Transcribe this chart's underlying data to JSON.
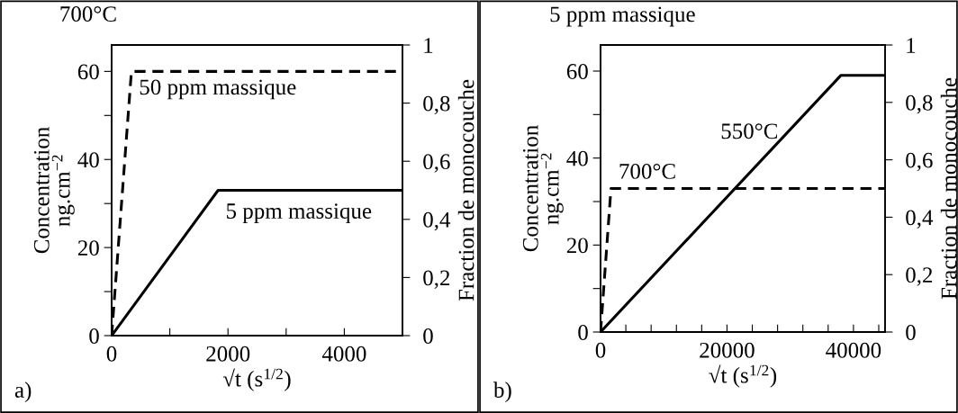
{
  "chart_data": [
    {
      "type": "line",
      "title": "700°C",
      "xlabel": "√t (s$^{1/2}$)",
      "ylabel": "Concentration\nng.cm$^{−2}$",
      "y2label": "Fraction de monocouche",
      "xlim": [
        0,
        5000
      ],
      "xticks": [
        0,
        {
          "value": 1000,
          "label": null
        },
        2000,
        {
          "value": 3000,
          "label": null
        },
        4000
      ],
      "ylim": [
        0,
        66
      ],
      "yticks": [
        0,
        {
          "value": 10,
          "label": null
        },
        20,
        {
          "value": 30,
          "label": null
        },
        40,
        {
          "value": 50,
          "label": null
        },
        60
      ],
      "y2lim": [
        0,
        1
      ],
      "y2ticks": [
        0,
        {
          "value": 0.2,
          "label": "0,2"
        },
        {
          "value": 0.4,
          "label": "0,4"
        },
        {
          "value": 0.6,
          "label": "0,6"
        },
        {
          "value": 0.8,
          "label": "0,8"
        },
        1
      ],
      "grid": false,
      "legend": false,
      "series": [
        {
          "name": "50 ppm massique",
          "color": "#000000",
          "line_style": "dashed",
          "x": [
            0,
            340,
            5000
          ],
          "values": [
            0,
            60,
            60
          ]
        },
        {
          "name": "5 ppm massique",
          "color": "#000000",
          "line_style": "solid",
          "x": [
            0,
            1830,
            5000
          ],
          "values": [
            0,
            33,
            33
          ]
        }
      ],
      "annotations": [
        "a)"
      ]
    },
    {
      "type": "line",
      "title": "5 ppm massique",
      "xlabel": "√t (s$^{1/2}$)",
      "ylabel": "Concentration\nng.cm$^{−2}$",
      "y2label": "Fraction de monocouche",
      "xlim": [
        0,
        45000
      ],
      "xticks": [
        0,
        {
          "value": 4000,
          "label": null
        },
        {
          "value": 8000,
          "label": null
        },
        {
          "value": 12000,
          "label": null
        },
        {
          "value": 16000,
          "label": null
        },
        20000,
        {
          "value": 24000,
          "label": null
        },
        {
          "value": 28000,
          "label": null
        },
        {
          "value": 32000,
          "label": null
        },
        {
          "value": 36000,
          "label": null
        },
        40000,
        {
          "value": 44000,
          "label": null
        }
      ],
      "ylim": [
        0,
        66
      ],
      "yticks": [
        0,
        {
          "value": 10,
          "label": null
        },
        20,
        {
          "value": 30,
          "label": null
        },
        40,
        {
          "value": 50,
          "label": null
        },
        60
      ],
      "y2lim": [
        0,
        1
      ],
      "y2ticks": [
        0,
        {
          "value": 0.2,
          "label": "0,2"
        },
        {
          "value": 0.4,
          "label": "0,4"
        },
        {
          "value": 0.6,
          "label": "0,6"
        },
        {
          "value": 0.8,
          "label": "0,8"
        },
        1
      ],
      "grid": false,
      "legend": false,
      "series": [
        {
          "name": "550°C",
          "color": "#000000",
          "line_style": "solid",
          "x": [
            0,
            38000,
            45000
          ],
          "values": [
            0,
            59,
            59
          ]
        },
        {
          "name": "700°C",
          "color": "#000000",
          "line_style": "dashed",
          "x": [
            0,
            1650,
            45000
          ],
          "values": [
            0,
            33,
            33
          ]
        }
      ],
      "annotations": [
        "b)"
      ]
    }
  ]
}
